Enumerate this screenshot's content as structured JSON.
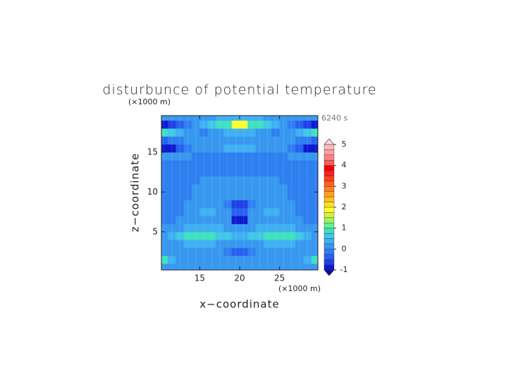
{
  "chart_data": {
    "type": "contour",
    "title": "disturbunce of potential temperature",
    "x_label": "x−coordinate",
    "y_label": "z−coordinate",
    "x_unit": "(×1000 m)",
    "y_unit": "(×1000 m)",
    "time_label": "6240 s",
    "xlim": [
      10.2,
      29.8
    ],
    "ylim": [
      0.2,
      19.6
    ],
    "xticks": [
      15,
      20,
      25
    ],
    "yticks": [
      5,
      10,
      15
    ],
    "x": [
      10.5,
      11.5,
      12.5,
      13.5,
      14.5,
      15.5,
      16.5,
      17.5,
      18.5,
      19.5,
      20.5,
      21.5,
      22.5,
      23.5,
      24.5,
      25.5,
      26.5,
      27.5,
      28.5,
      29.5
    ],
    "y": [
      0.5,
      1.5,
      2.5,
      3.5,
      4.5,
      5.5,
      6.5,
      7.5,
      8.5,
      9.5,
      10.5,
      11.5,
      12.5,
      13.5,
      14.5,
      15.5,
      16.5,
      17.5,
      18.5,
      19.5
    ],
    "z": [
      [
        0.1,
        0.1,
        0.1,
        0.1,
        0.1,
        0.1,
        0.1,
        0.1,
        0.1,
        0.1,
        0.1,
        0.1,
        0.1,
        0.1,
        0.1,
        0.1,
        0.1,
        0.1,
        0.1,
        0.1
      ],
      [
        0.8,
        0.4,
        0.2,
        0.1,
        0.1,
        0.1,
        0.1,
        0.1,
        0.1,
        0.1,
        0.1,
        0.1,
        0.1,
        0.1,
        0.1,
        0.1,
        0.1,
        0.2,
        0.4,
        0.8
      ],
      [
        0.2,
        0.1,
        0,
        0,
        0,
        0,
        0,
        0,
        -0.1,
        -0.3,
        -0.3,
        -0.1,
        0,
        0,
        0,
        0,
        0,
        0,
        0.1,
        0.2
      ],
      [
        0.1,
        0.1,
        0.2,
        0.3,
        0.3,
        0.3,
        0.3,
        0.2,
        0.1,
        0.1,
        0.1,
        0.1,
        0.2,
        0.3,
        0.3,
        0.3,
        0.3,
        0.2,
        0.1,
        0.1
      ],
      [
        0.2,
        0.3,
        0.5,
        0.8,
        0.9,
        0.9,
        0.8,
        0.7,
        0.5,
        0.3,
        0.3,
        0.5,
        0.7,
        0.8,
        0.9,
        0.9,
        0.8,
        0.5,
        0.3,
        0.2
      ],
      [
        0,
        0.1,
        0.2,
        0.3,
        0.3,
        0.3,
        0.3,
        0.3,
        0.2,
        0.1,
        0.1,
        0.2,
        0.3,
        0.3,
        0.3,
        0.3,
        0.3,
        0.2,
        0.1,
        0
      ],
      [
        -0.1,
        -0.1,
        0,
        0.1,
        0.2,
        0.2,
        0.2,
        0.1,
        0,
        -0.8,
        -0.8,
        0,
        0.1,
        0.2,
        0.2,
        0.2,
        0.1,
        0,
        -0.1,
        -0.1
      ],
      [
        -0.1,
        -0.1,
        -0.1,
        0,
        0.2,
        0.3,
        0.3,
        0.2,
        0,
        -0.3,
        -0.3,
        0,
        0.2,
        0.3,
        0.3,
        0.2,
        0,
        -0.1,
        -0.1,
        -0.1
      ],
      [
        -0.2,
        -0.2,
        -0.1,
        0,
        0.1,
        0.2,
        0.2,
        0.1,
        -0.2,
        -0.6,
        -0.6,
        -0.2,
        0.1,
        0.2,
        0.2,
        0.1,
        0,
        -0.1,
        -0.2,
        -0.2
      ],
      [
        -0.1,
        -0.1,
        -0.1,
        -0.1,
        0,
        0.1,
        0.1,
        0.1,
        0,
        0,
        0,
        0,
        0.1,
        0.1,
        0.1,
        0,
        -0.1,
        -0.1,
        -0.1,
        -0.1
      ],
      [
        -0.1,
        -0.1,
        -0.2,
        -0.1,
        0,
        0.1,
        0.2,
        0.2,
        0.2,
        0.2,
        0.2,
        0.2,
        0.2,
        0.2,
        0.1,
        0,
        -0.1,
        -0.2,
        -0.1,
        -0.1
      ],
      [
        -0.1,
        -0.1,
        -0.1,
        -0.1,
        -0.1,
        0,
        0.1,
        0.2,
        0.2,
        0.2,
        0.2,
        0.2,
        0.2,
        0.1,
        0,
        -0.1,
        -0.1,
        -0.1,
        -0.1,
        -0.1
      ],
      [
        -0.2,
        -0.2,
        -0.2,
        -0.1,
        -0.1,
        -0.1,
        -0.1,
        -0.1,
        -0.1,
        -0.1,
        -0.1,
        -0.1,
        -0.1,
        -0.1,
        -0.1,
        -0.1,
        -0.1,
        -0.2,
        -0.2,
        -0.2
      ],
      [
        -0.1,
        -0.1,
        -0.1,
        -0.1,
        -0.1,
        -0.1,
        -0.1,
        -0.1,
        -0.1,
        -0.1,
        -0.1,
        -0.1,
        -0.1,
        -0.1,
        -0.1,
        -0.1,
        -0.1,
        -0.1,
        -0.1,
        -0.1
      ],
      [
        0,
        0,
        0,
        0,
        -0.1,
        -0.1,
        -0.1,
        -0.1,
        -0.1,
        -0.1,
        -0.1,
        -0.1,
        -0.1,
        -0.1,
        -0.1,
        -0.1,
        0,
        0,
        0,
        0
      ],
      [
        -0.8,
        -0.8,
        -0.5,
        -0.2,
        0,
        0.1,
        0.1,
        0.2,
        0.3,
        0.3,
        0.3,
        0.3,
        0.2,
        0.1,
        0.1,
        0,
        -0.2,
        -0.5,
        -0.8,
        -0.8
      ],
      [
        -0.3,
        -0.2,
        -0.1,
        0,
        0,
        0,
        0,
        0,
        0.1,
        0.1,
        0.1,
        0.1,
        0,
        0,
        0,
        0,
        0,
        -0.1,
        -0.2,
        -0.3
      ],
      [
        0.8,
        0.6,
        0.3,
        0.1,
        0,
        -0.1,
        0.1,
        0.2,
        0.3,
        0.3,
        0.3,
        0.3,
        0.2,
        0.1,
        -0.1,
        0,
        0.1,
        0.3,
        0.6,
        0.8
      ],
      [
        -0.8,
        -0.6,
        -0.3,
        -0.1,
        0.1,
        0.3,
        0.6,
        0.8,
        0.9,
        1.8,
        1.8,
        0.9,
        0.8,
        0.6,
        0.3,
        0.1,
        -0.1,
        -0.3,
        -0.6,
        -0.8
      ],
      [
        0,
        0,
        0,
        0,
        0.1,
        0.1,
        0.2,
        0.3,
        0.3,
        0.3,
        0.3,
        0.3,
        0.3,
        0.2,
        0.1,
        0.1,
        0,
        0,
        0,
        0
      ]
    ],
    "colorbar": {
      "levels": [
        -1,
        -0.75,
        -0.5,
        -0.25,
        0,
        0.25,
        0.5,
        0.75,
        1,
        1.25,
        1.5,
        1.75,
        2,
        2.25,
        2.5,
        2.75,
        3,
        3.25,
        3.5,
        3.75,
        4,
        4.25,
        4.5,
        4.75,
        5
      ],
      "colors": [
        "#1018d0",
        "#2040e8",
        "#2860f0",
        "#2e7ff0",
        "#3898f0",
        "#40b0f2",
        "#40c8e8",
        "#40e0c0",
        "#60f090",
        "#a0f060",
        "#d8f040",
        "#ffff30",
        "#ffe020",
        "#ffc020",
        "#ffa020",
        "#ff8020",
        "#ff6020",
        "#ff4020",
        "#ff2020",
        "#f00000",
        "#ff5a5a",
        "#ff8080",
        "#ffa0a0",
        "#ffb8b8"
      ],
      "under_color": "#0010a0",
      "over_color": "#ffd8d8",
      "ticks": [
        -1,
        0,
        1,
        2,
        3,
        4,
        5
      ]
    }
  }
}
